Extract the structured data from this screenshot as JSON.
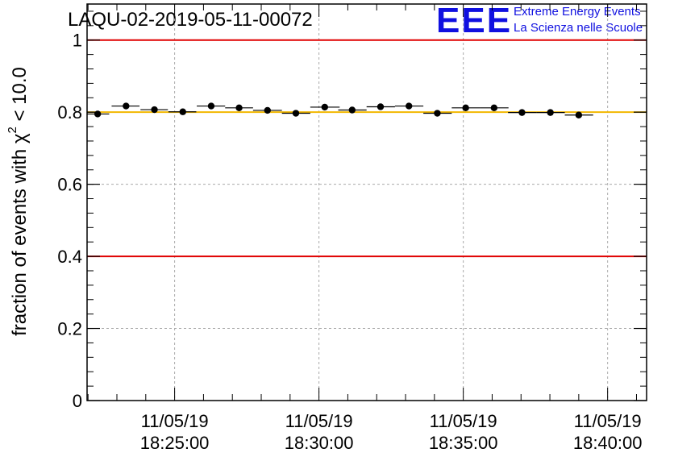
{
  "header": {
    "run_title": "LAQU-02-2019-05-11-00072",
    "logo_text": "EEE",
    "logo_line1": "Extreme Energy Events",
    "logo_line2": "La Scienza nelle Scuole"
  },
  "colors": {
    "logo": "#1010e0",
    "reference_lines": "#e00000",
    "mean_line": "#f2b800",
    "markers": "#000000",
    "grid": "#aaaaaa"
  },
  "chart_data": {
    "type": "scatter",
    "title": "LAQU-02-2019-05-11-00072",
    "ylabel": "fraction of events with χ² < 10.0",
    "ylabel_parts": {
      "before": "fraction of events with ",
      "symbol": "χ",
      "superscript": "2",
      "after": " < 10.0"
    },
    "ylim": [
      0,
      1.1
    ],
    "yticks": [
      0,
      0.2,
      0.4,
      0.6,
      0.8,
      1
    ],
    "ytick_labels": [
      "0",
      "0.2",
      "0.4",
      "0.6",
      "0.8",
      "1"
    ],
    "xlim": [
      "2019-05-11 18:21:58",
      "2019-05-11 18:41:21"
    ],
    "xticks": [
      {
        "t": "2019-05-11 18:25:00",
        "label_date": "11/05/19",
        "label_time": "18:25:00"
      },
      {
        "t": "2019-05-11 18:30:00",
        "label_date": "11/05/19",
        "label_time": "18:30:00"
      },
      {
        "t": "2019-05-11 18:35:00",
        "label_date": "11/05/19",
        "label_time": "18:35:00"
      },
      {
        "t": "2019-05-11 18:40:00",
        "label_date": "11/05/19",
        "label_time": "18:40:00"
      }
    ],
    "grid": true,
    "reference_lines": [
      0.4,
      1.0
    ],
    "mean_line": 0.8,
    "points": [
      {
        "t": "2019-05-11 18:22:20",
        "y": 0.795,
        "t_start": "2019-05-11 18:21:58",
        "t_end": "2019-05-11 18:22:44"
      },
      {
        "t": "2019-05-11 18:23:19",
        "y": 0.817,
        "t_start": "2019-05-11 18:22:49",
        "t_end": "2019-05-11 18:23:47"
      },
      {
        "t": "2019-05-11 18:24:18",
        "y": 0.807,
        "t_start": "2019-05-11 18:23:49",
        "t_end": "2019-05-11 18:24:46"
      },
      {
        "t": "2019-05-11 18:25:17",
        "y": 0.801,
        "t_start": "2019-05-11 18:24:47",
        "t_end": "2019-05-11 18:25:45"
      },
      {
        "t": "2019-05-11 18:26:16",
        "y": 0.817,
        "t_start": "2019-05-11 18:25:46",
        "t_end": "2019-05-11 18:26:45"
      },
      {
        "t": "2019-05-11 18:27:14",
        "y": 0.812,
        "t_start": "2019-05-11 18:26:45",
        "t_end": "2019-05-11 18:27:43"
      },
      {
        "t": "2019-05-11 18:28:13",
        "y": 0.805,
        "t_start": "2019-05-11 18:27:43",
        "t_end": "2019-05-11 18:28:43"
      },
      {
        "t": "2019-05-11 18:29:12",
        "y": 0.797,
        "t_start": "2019-05-11 18:28:43",
        "t_end": "2019-05-11 18:29:42"
      },
      {
        "t": "2019-05-11 18:30:12",
        "y": 0.814,
        "t_start": "2019-05-11 18:29:42",
        "t_end": "2019-05-11 18:30:43"
      },
      {
        "t": "2019-05-11 18:31:09",
        "y": 0.806,
        "t_start": "2019-05-11 18:30:40",
        "t_end": "2019-05-11 18:31:39"
      },
      {
        "t": "2019-05-11 18:32:08",
        "y": 0.815,
        "t_start": "2019-05-11 18:31:39",
        "t_end": "2019-05-11 18:32:38"
      },
      {
        "t": "2019-05-11 18:33:07",
        "y": 0.817,
        "t_start": "2019-05-11 18:32:38",
        "t_end": "2019-05-11 18:33:37"
      },
      {
        "t": "2019-05-11 18:34:06",
        "y": 0.797,
        "t_start": "2019-05-11 18:33:37",
        "t_end": "2019-05-11 18:34:36"
      },
      {
        "t": "2019-05-11 18:35:05",
        "y": 0.812,
        "t_start": "2019-05-11 18:34:36",
        "t_end": "2019-05-11 18:35:35"
      },
      {
        "t": "2019-05-11 18:36:04",
        "y": 0.812,
        "t_start": "2019-05-11 18:35:35",
        "t_end": "2019-05-11 18:36:34"
      },
      {
        "t": "2019-05-11 18:37:02",
        "y": 0.799,
        "t_start": "2019-05-11 18:36:33",
        "t_end": "2019-05-11 18:37:32"
      },
      {
        "t": "2019-05-11 18:38:01",
        "y": 0.799,
        "t_start": "2019-05-11 18:37:32",
        "t_end": "2019-05-11 18:38:31"
      },
      {
        "t": "2019-05-11 18:39:00",
        "y": 0.792,
        "t_start": "2019-05-11 18:38:31",
        "t_end": "2019-05-11 18:39:30"
      }
    ]
  }
}
